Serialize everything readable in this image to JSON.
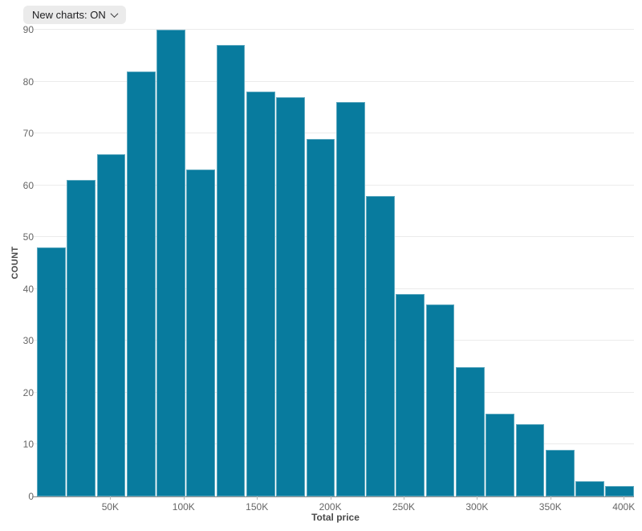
{
  "toolbar": {
    "new_charts_button": {
      "label": "New charts: ON",
      "icon": "chevron-down"
    }
  },
  "chart_data": {
    "type": "bar",
    "variant": "histogram",
    "title": "",
    "xlabel": "Total price",
    "ylabel": "COUNT",
    "values": [
      48,
      61,
      66,
      82,
      90,
      63,
      87,
      78,
      77,
      69,
      76,
      58,
      39,
      37,
      25,
      16,
      14,
      9,
      3,
      2
    ],
    "y_ticks": [
      0,
      10,
      20,
      30,
      40,
      50,
      60,
      70,
      80,
      90
    ],
    "ylim": [
      0,
      90
    ],
    "x_ticks": [
      {
        "value": 50000,
        "label": "50K"
      },
      {
        "value": 100000,
        "label": "100K"
      },
      {
        "value": 150000,
        "label": "150K"
      },
      {
        "value": 200000,
        "label": "200K"
      },
      {
        "value": 250000,
        "label": "250K"
      },
      {
        "value": 300000,
        "label": "300K"
      },
      {
        "value": 350000,
        "label": "350K"
      },
      {
        "value": 400000,
        "label": "400K"
      }
    ],
    "xlim": [
      0,
      407000
    ],
    "grid": "horizontal-only",
    "legend": "none",
    "bar_color": "#087B9E"
  },
  "colors": {
    "background": "#FFFFFF",
    "bar": "#087B9E",
    "bar_edge": "rgba(255,255,255,0.35)",
    "gridline": "#EBEBEB",
    "axis_line": "#8A8A8A",
    "tick_text": "#666666",
    "axis_title_text": "#4A4A4A",
    "button_bg": "#EBEBEB",
    "button_text": "#1D1D1F"
  }
}
